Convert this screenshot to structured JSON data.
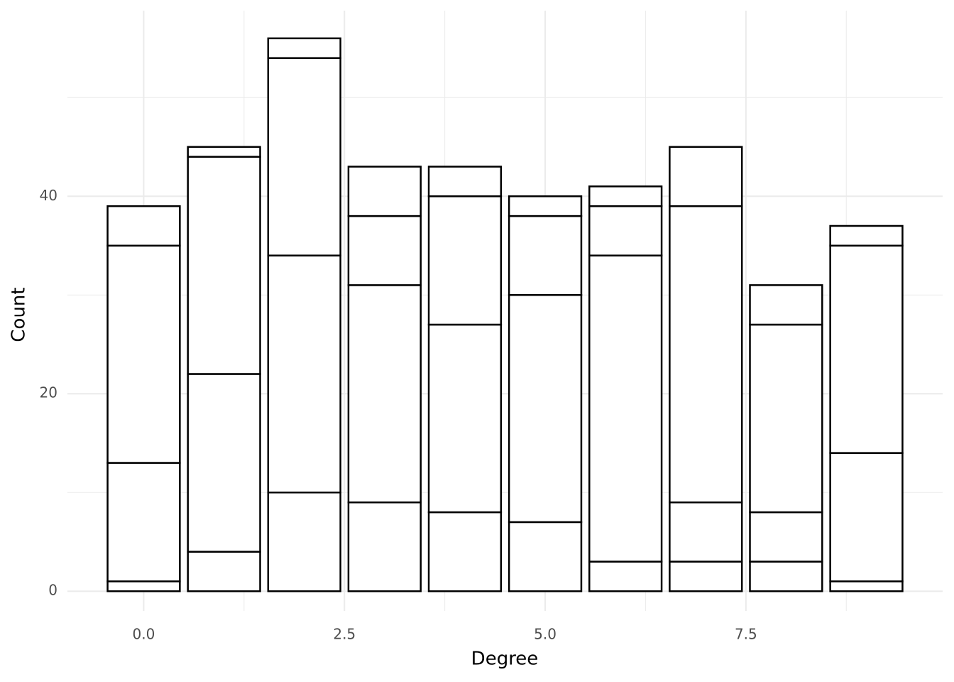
{
  "chart_data": {
    "type": "stacked_bar",
    "x_label": "Degree",
    "y_label": "Count",
    "x": [
      0,
      1,
      2,
      3,
      4,
      5,
      6,
      7,
      8,
      9
    ],
    "series": [
      {
        "color": "#ffffff",
        "values": [
          1,
          4,
          10,
          9,
          8,
          7,
          3,
          3,
          3,
          1
        ]
      },
      {
        "color": "#ffffff",
        "values": [
          12,
          18,
          24,
          22,
          19,
          23,
          31,
          6,
          5,
          13
        ]
      },
      {
        "color": "#ffffff",
        "values": [
          22,
          22,
          20,
          7,
          13,
          8,
          5,
          30,
          19,
          21
        ]
      },
      {
        "color": "#ffffff",
        "values": [
          4,
          1,
          2,
          5,
          3,
          2,
          2,
          6,
          4,
          2
        ]
      }
    ],
    "outline_color": "#000000",
    "xlim": [
      -0.95,
      9.95
    ],
    "ylim": [
      -2,
      58.8
    ],
    "xticks": [
      {
        "value": 0,
        "label": "0.0"
      },
      2.5,
      {
        "value": 5,
        "label": "5.0"
      },
      7.5
    ],
    "yticks": [
      0,
      20,
      40
    ],
    "x_minor_ticks": [
      1.25,
      3.75,
      6.25,
      8.75
    ],
    "y_minor_ticks": [
      10,
      30,
      50
    ],
    "grid": true
  }
}
